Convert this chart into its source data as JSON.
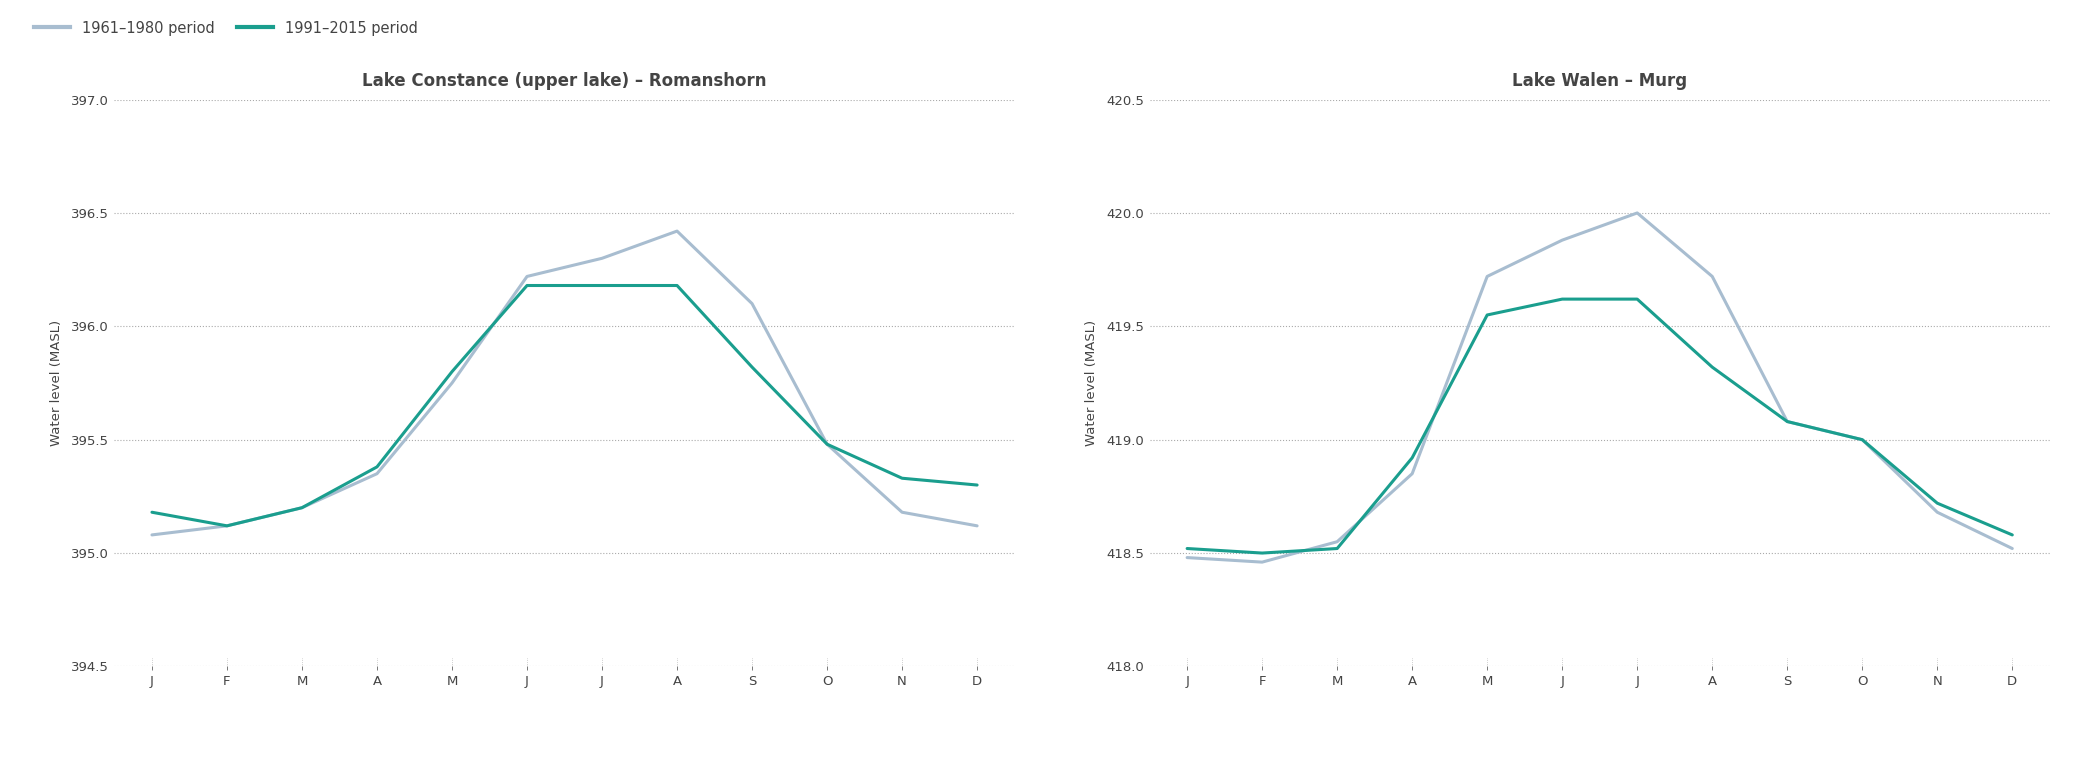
{
  "months": [
    "J",
    "F",
    "M",
    "A",
    "M",
    "J",
    "J",
    "A",
    "S",
    "O",
    "N",
    "D"
  ],
  "constance_1961": [
    395.08,
    395.12,
    395.2,
    395.35,
    395.75,
    396.22,
    396.3,
    396.42,
    396.1,
    395.48,
    395.18,
    395.12
  ],
  "constance_1991": [
    395.18,
    395.12,
    395.2,
    395.38,
    395.8,
    396.18,
    396.18,
    396.18,
    395.82,
    395.48,
    395.33,
    395.3
  ],
  "walen_1961": [
    418.48,
    418.46,
    418.55,
    418.85,
    419.72,
    419.88,
    420.0,
    419.72,
    419.08,
    419.0,
    418.68,
    418.52
  ],
  "walen_1991": [
    418.52,
    418.5,
    418.52,
    418.92,
    419.55,
    419.62,
    419.62,
    419.32,
    419.08,
    419.0,
    418.72,
    418.58
  ],
  "color_1961": "#a8bdd0",
  "color_1991": "#1a9e8e",
  "title_left": "Lake Constance (upper lake) – Romanshorn",
  "title_right": "Lake Walen – Murg",
  "ylabel": "Water level (MASL)",
  "ylim_left": [
    394.5,
    397.0
  ],
  "ylim_right": [
    418.0,
    420.5
  ],
  "yticks_left": [
    394.5,
    395.0,
    395.5,
    396.0,
    396.5,
    397.0
  ],
  "yticks_right": [
    418.0,
    418.5,
    419.0,
    419.5,
    420.0,
    420.5
  ],
  "legend_label_1961": "1961–1980 period",
  "legend_label_1991": "1991–2015 period",
  "background_color": "#ffffff",
  "text_color": "#444444",
  "grid_color": "#aaaaaa",
  "line_width": 2.2,
  "title_fontsize": 12,
  "label_fontsize": 9.5,
  "tick_fontsize": 9.5,
  "legend_fontsize": 10.5
}
